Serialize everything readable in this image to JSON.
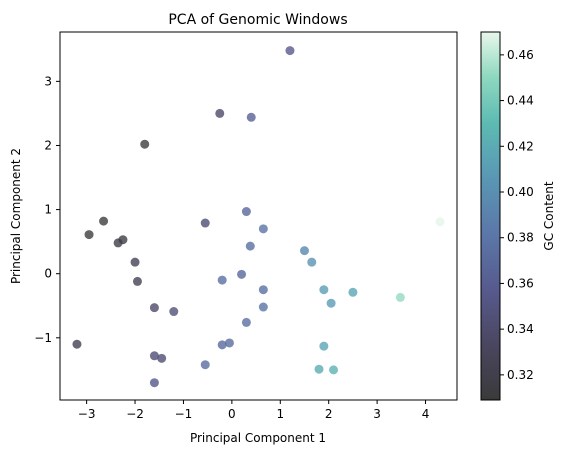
{
  "chart_data": {
    "type": "scatter",
    "title": "PCA of Genomic Windows",
    "xlabel": "Principal Component 1",
    "ylabel": "Principal Component 2",
    "xlim": [
      -3.55,
      4.65
    ],
    "ylim": [
      -1.97,
      3.77
    ],
    "xticks": [
      -3,
      -2,
      -1,
      0,
      1,
      2,
      3,
      4
    ],
    "yticks": [
      -1,
      0,
      1,
      2,
      3
    ],
    "grid": false,
    "colorbar": {
      "label": "GC Content",
      "range": [
        0.309,
        0.47
      ],
      "ticks": [
        "0.32",
        "0.34",
        "0.36",
        "0.38",
        "0.40",
        "0.42",
        "0.44",
        "0.46"
      ],
      "tick_values": [
        0.32,
        0.34,
        0.36,
        0.38,
        0.4,
        0.42,
        0.44,
        0.46
      ],
      "colormap_stops": [
        {
          "v": 0.0,
          "c": "#3a3a3a"
        },
        {
          "v": 0.15,
          "c": "#4a4660"
        },
        {
          "v": 0.3,
          "c": "#575a8e"
        },
        {
          "v": 0.45,
          "c": "#5b77a8"
        },
        {
          "v": 0.6,
          "c": "#5a96b4"
        },
        {
          "v": 0.75,
          "c": "#5cbab3"
        },
        {
          "v": 0.88,
          "c": "#8fd9bf"
        },
        {
          "v": 1.0,
          "c": "#e8f7ec"
        }
      ]
    },
    "points": [
      {
        "x": 1.2,
        "y": 3.48,
        "gc": 0.357
      },
      {
        "x": -0.25,
        "y": 2.5,
        "gc": 0.338
      },
      {
        "x": 0.4,
        "y": 2.44,
        "gc": 0.362
      },
      {
        "x": -1.8,
        "y": 2.02,
        "gc": 0.315
      },
      {
        "x": 0.3,
        "y": 0.97,
        "gc": 0.369
      },
      {
        "x": -0.55,
        "y": 0.79,
        "gc": 0.343
      },
      {
        "x": 0.65,
        "y": 0.7,
        "gc": 0.379
      },
      {
        "x": -2.65,
        "y": 0.82,
        "gc": 0.313
      },
      {
        "x": -2.95,
        "y": 0.61,
        "gc": 0.313
      },
      {
        "x": -2.25,
        "y": 0.53,
        "gc": 0.316
      },
      {
        "x": -2.35,
        "y": 0.48,
        "gc": 0.316
      },
      {
        "x": 0.38,
        "y": 0.43,
        "gc": 0.376
      },
      {
        "x": 1.5,
        "y": 0.36,
        "gc": 0.394
      },
      {
        "x": -2.0,
        "y": 0.18,
        "gc": 0.326
      },
      {
        "x": 1.65,
        "y": 0.18,
        "gc": 0.403
      },
      {
        "x": 4.3,
        "y": 0.81,
        "gc": 0.469
      },
      {
        "x": 0.2,
        "y": -0.01,
        "gc": 0.369
      },
      {
        "x": -0.2,
        "y": -0.1,
        "gc": 0.376
      },
      {
        "x": -1.95,
        "y": -0.12,
        "gc": 0.326
      },
      {
        "x": 0.65,
        "y": -0.25,
        "gc": 0.376
      },
      {
        "x": 1.9,
        "y": -0.25,
        "gc": 0.411
      },
      {
        "x": 2.5,
        "y": -0.29,
        "gc": 0.416
      },
      {
        "x": 3.48,
        "y": -0.37,
        "gc": 0.452
      },
      {
        "x": 2.05,
        "y": -0.46,
        "gc": 0.409
      },
      {
        "x": -1.6,
        "y": -0.53,
        "gc": 0.338
      },
      {
        "x": 0.65,
        "y": -0.52,
        "gc": 0.379
      },
      {
        "x": -1.2,
        "y": -0.59,
        "gc": 0.345
      },
      {
        "x": 0.3,
        "y": -0.76,
        "gc": 0.376
      },
      {
        "x": -3.2,
        "y": -1.1,
        "gc": 0.323
      },
      {
        "x": -0.2,
        "y": -1.11,
        "gc": 0.371
      },
      {
        "x": -0.05,
        "y": -1.08,
        "gc": 0.373
      },
      {
        "x": 1.9,
        "y": -1.13,
        "gc": 0.416
      },
      {
        "x": -1.6,
        "y": -1.28,
        "gc": 0.343
      },
      {
        "x": -1.45,
        "y": -1.32,
        "gc": 0.343
      },
      {
        "x": -0.55,
        "y": -1.42,
        "gc": 0.373
      },
      {
        "x": 1.8,
        "y": -1.49,
        "gc": 0.421
      },
      {
        "x": 2.1,
        "y": -1.5,
        "gc": 0.424
      },
      {
        "x": -1.6,
        "y": -1.7,
        "gc": 0.355
      }
    ]
  }
}
